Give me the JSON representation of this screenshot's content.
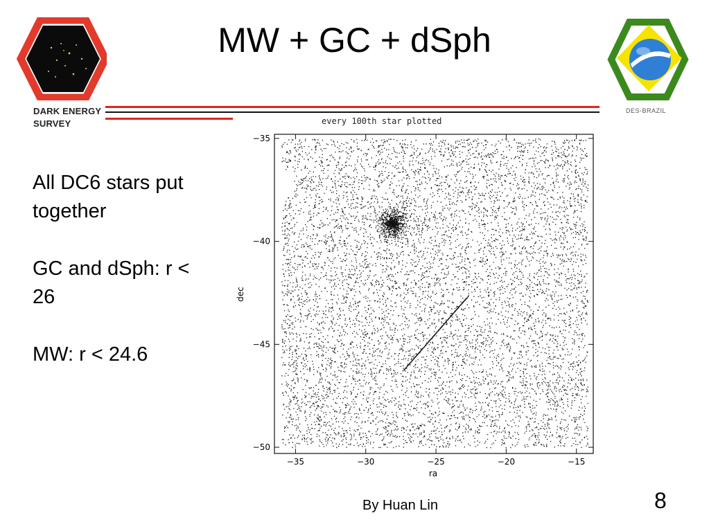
{
  "slide": {
    "title": "MW + GC + dSph",
    "bullets": [
      "All DC6 stars put together",
      "GC and dSph: r < 26",
      "MW: r < 24.6"
    ],
    "footer": "By Huan Lin",
    "page_number": "8"
  },
  "logos": {
    "left_wordmark": [
      "DARK ENERGY",
      "SURVEY"
    ],
    "right_caption": "DES-BRAZIL"
  },
  "colors": {
    "rule_red": "#e0241c",
    "rule_black": "#111111",
    "des_red": "#e23a2c",
    "brazil_green": "#3c8a1e",
    "brazil_yellow": "#f6e400",
    "brazil_blue": "#2f7fd6"
  },
  "chart_data": {
    "type": "scatter",
    "title": "every 100th star plotted",
    "xlabel": "ra",
    "ylabel": "dec",
    "xlim": [
      -36.5,
      -13.8
    ],
    "ylim": [
      -50.3,
      -34.8
    ],
    "xticks": [
      -35,
      -30,
      -25,
      -20,
      -15
    ],
    "yticks": [
      -35,
      -40,
      -45,
      -50
    ],
    "xtick_labels": [
      "−35",
      "−30",
      "−25",
      "−20",
      "−15"
    ],
    "ytick_labels": [
      "−35",
      "−40",
      "−45",
      "−50"
    ],
    "point_color": "#111111",
    "components": {
      "field": {
        "ra_range": [
          -36,
          -14.2
        ],
        "dec_range": [
          -50,
          -35
        ],
        "density": "uniform"
      },
      "globular_cluster": {
        "ra": -28.1,
        "dec": -39.1
      },
      "dwarf_spheroidal_stream": {
        "start": [
          -27.4,
          -46.3
        ],
        "end": [
          -22.8,
          -42.7
        ]
      }
    }
  }
}
